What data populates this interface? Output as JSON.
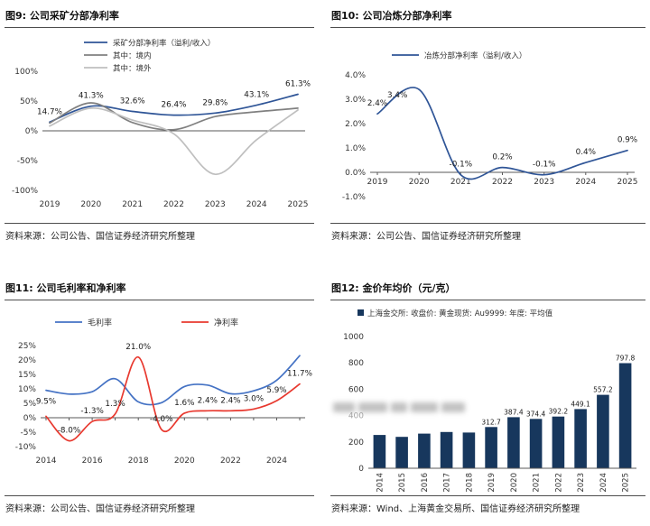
{
  "colors": {
    "navy": "#2f5597",
    "gray": "#808080",
    "light_gray": "#bfbfbf",
    "blue": "#4472c4",
    "red": "#e8392f",
    "bar_navy": "#17375d",
    "axis": "#595959",
    "tick_text": "#333333",
    "label_text": "#1a1a1a",
    "legend_text": "#333333"
  },
  "panels": [
    {
      "title": "图9: 公司采矿分部净利率",
      "source": "资料来源：公司公告、国信证券经济研究所整理"
    },
    {
      "title": "图10: 公司冶炼分部净利率",
      "source": "资料来源：公司公告、国信证券经济研究所整理"
    },
    {
      "title": "图11: 公司毛利率和净利率",
      "source": "资料来源：公司公告、国信证券经济研究所整理"
    },
    {
      "title": "图12: 金价年均价（元/克）",
      "source": "资料来源：Wind、上海黄金交易所、国信证券经济研究所整理"
    }
  ],
  "chart_data": [
    {
      "type": "line",
      "title": "公司采矿分部净利率",
      "categories": [
        "2019",
        "2020",
        "2021",
        "2022",
        "2023",
        "2024",
        "2025"
      ],
      "series": [
        {
          "name": "采矿分部净利率（溢利/收入）",
          "color": "navy",
          "values": [
            14.7,
            41.3,
            32.6,
            26.4,
            29.8,
            43.1,
            61.3
          ],
          "labels": [
            "14.7%",
            "41.3%",
            "32.6%",
            "26.4%",
            "29.8%",
            "43.1%",
            "61.3%"
          ],
          "label_pos": [
            "above",
            "above",
            "above",
            "above",
            "above",
            "above",
            "above"
          ]
        },
        {
          "name": "其中：境内",
          "color": "gray",
          "values": [
            13,
            47,
            14,
            2,
            24,
            32,
            38
          ],
          "labels": []
        },
        {
          "name": "其中：境外",
          "color": "light_gray",
          "values": [
            8,
            38,
            18,
            -5,
            -73,
            -15,
            35
          ],
          "labels": []
        }
      ],
      "ylim": [
        -100,
        100
      ],
      "yticks": [
        100,
        50,
        0,
        -50,
        -100
      ],
      "ytick_labels": [
        "100%",
        "50%",
        "0%",
        "-50%",
        "-100%"
      ],
      "legend_position": "top-left-vertical",
      "grid": false
    },
    {
      "type": "line",
      "title": "公司冶炼分部净利率",
      "categories": [
        "2019",
        "2020",
        "2021",
        "2022",
        "2023",
        "2024",
        "2025"
      ],
      "series": [
        {
          "name": "冶炼分部净利率（溢利/收入）",
          "color": "navy",
          "values": [
            2.4,
            3.4,
            -0.1,
            0.2,
            -0.1,
            0.4,
            0.9
          ],
          "labels": [
            "2.4%",
            "3.4%",
            "-0.1%",
            "0.2%",
            "-0.1%",
            "0.4%",
            "0.9%"
          ],
          "label_pos": [
            "above",
            "left",
            "above",
            "above",
            "above",
            "above",
            "above"
          ]
        }
      ],
      "ylim": [
        -1,
        4
      ],
      "yticks": [
        4,
        3,
        2,
        1,
        0,
        -1
      ],
      "ytick_labels": [
        "4.0%",
        "3.0%",
        "2.0%",
        "1.0%",
        "0.0%",
        "-1.0%"
      ],
      "legend_position": "top-center",
      "grid": false
    },
    {
      "type": "line",
      "title": "公司毛利率和净利率",
      "categories": [
        "2014",
        "2015",
        "2016",
        "2017",
        "2018",
        "2019",
        "2020",
        "2021",
        "2022",
        "2023",
        "2024",
        "2025"
      ],
      "xtick_every": 2,
      "series": [
        {
          "name": "毛利率",
          "color": "blue",
          "values": [
            9.5,
            8.2,
            9.0,
            13.5,
            5.5,
            5.2,
            10.8,
            11.3,
            8.3,
            9.3,
            13.0,
            21.5
          ],
          "labels": [
            "9.5%",
            "",
            "",
            "",
            "",
            "",
            "",
            "",
            "",
            "",
            "",
            ""
          ],
          "label_pos": [
            "below",
            "",
            "",
            "",
            "",
            "",
            "",
            "",
            "",
            "",
            "",
            ""
          ]
        },
        {
          "name": "净利率",
          "color": "red",
          "values": [
            0.5,
            -8.0,
            -1.3,
            1.3,
            21.0,
            -4.0,
            1.6,
            2.4,
            2.4,
            3.0,
            5.9,
            11.7
          ],
          "labels": [
            "",
            "-8.0%",
            "-1.3%",
            "1.3%",
            "21.0%",
            "-4.0%",
            "1.6%",
            "2.4%",
            "2.4%",
            "3.0%",
            "5.9%",
            "11.7%"
          ],
          "label_pos": [
            "",
            "above",
            "above",
            "above",
            "above",
            "above",
            "above",
            "above",
            "above",
            "above",
            "above",
            "above"
          ]
        }
      ],
      "ylim": [
        -10,
        25
      ],
      "yticks": [
        25,
        20,
        15,
        10,
        5,
        0,
        -5,
        -10
      ],
      "ytick_labels": [
        "25%",
        "20%",
        "15%",
        "10%",
        "5%",
        "0%",
        "-5%",
        "-10%"
      ],
      "legend_position": "top-horizontal",
      "grid": false
    },
    {
      "type": "bar",
      "title": "金价年均价（元/克）",
      "categories": [
        "2014",
        "2015",
        "2016",
        "2017",
        "2018",
        "2019",
        "2020",
        "2021",
        "2022",
        "2023",
        "2024",
        "2025"
      ],
      "series": [
        {
          "name": "上海金交所: 收盘价: 黄金现货: Au9999: 年度: 平均值",
          "color": "bar_navy",
          "values": [
            252.4,
            238.5,
            263.1,
            275.6,
            271.2,
            312.7,
            387.4,
            374.4,
            392.2,
            449.1,
            557.2,
            797.8
          ],
          "labels": [
            "",
            "",
            "",
            "",
            "",
            "312.7",
            "387.4",
            "374.4",
            "392.2",
            "449.1",
            "557.2",
            "797.8"
          ]
        }
      ],
      "ylim": [
        0,
        1000
      ],
      "yticks": [
        1000,
        800,
        600,
        400,
        200,
        0
      ],
      "ytick_labels": [
        "1000",
        "800",
        "600",
        "400",
        "200",
        "0"
      ],
      "legend_position": "top-left",
      "x_labels_rotated": true,
      "grid": false
    }
  ]
}
